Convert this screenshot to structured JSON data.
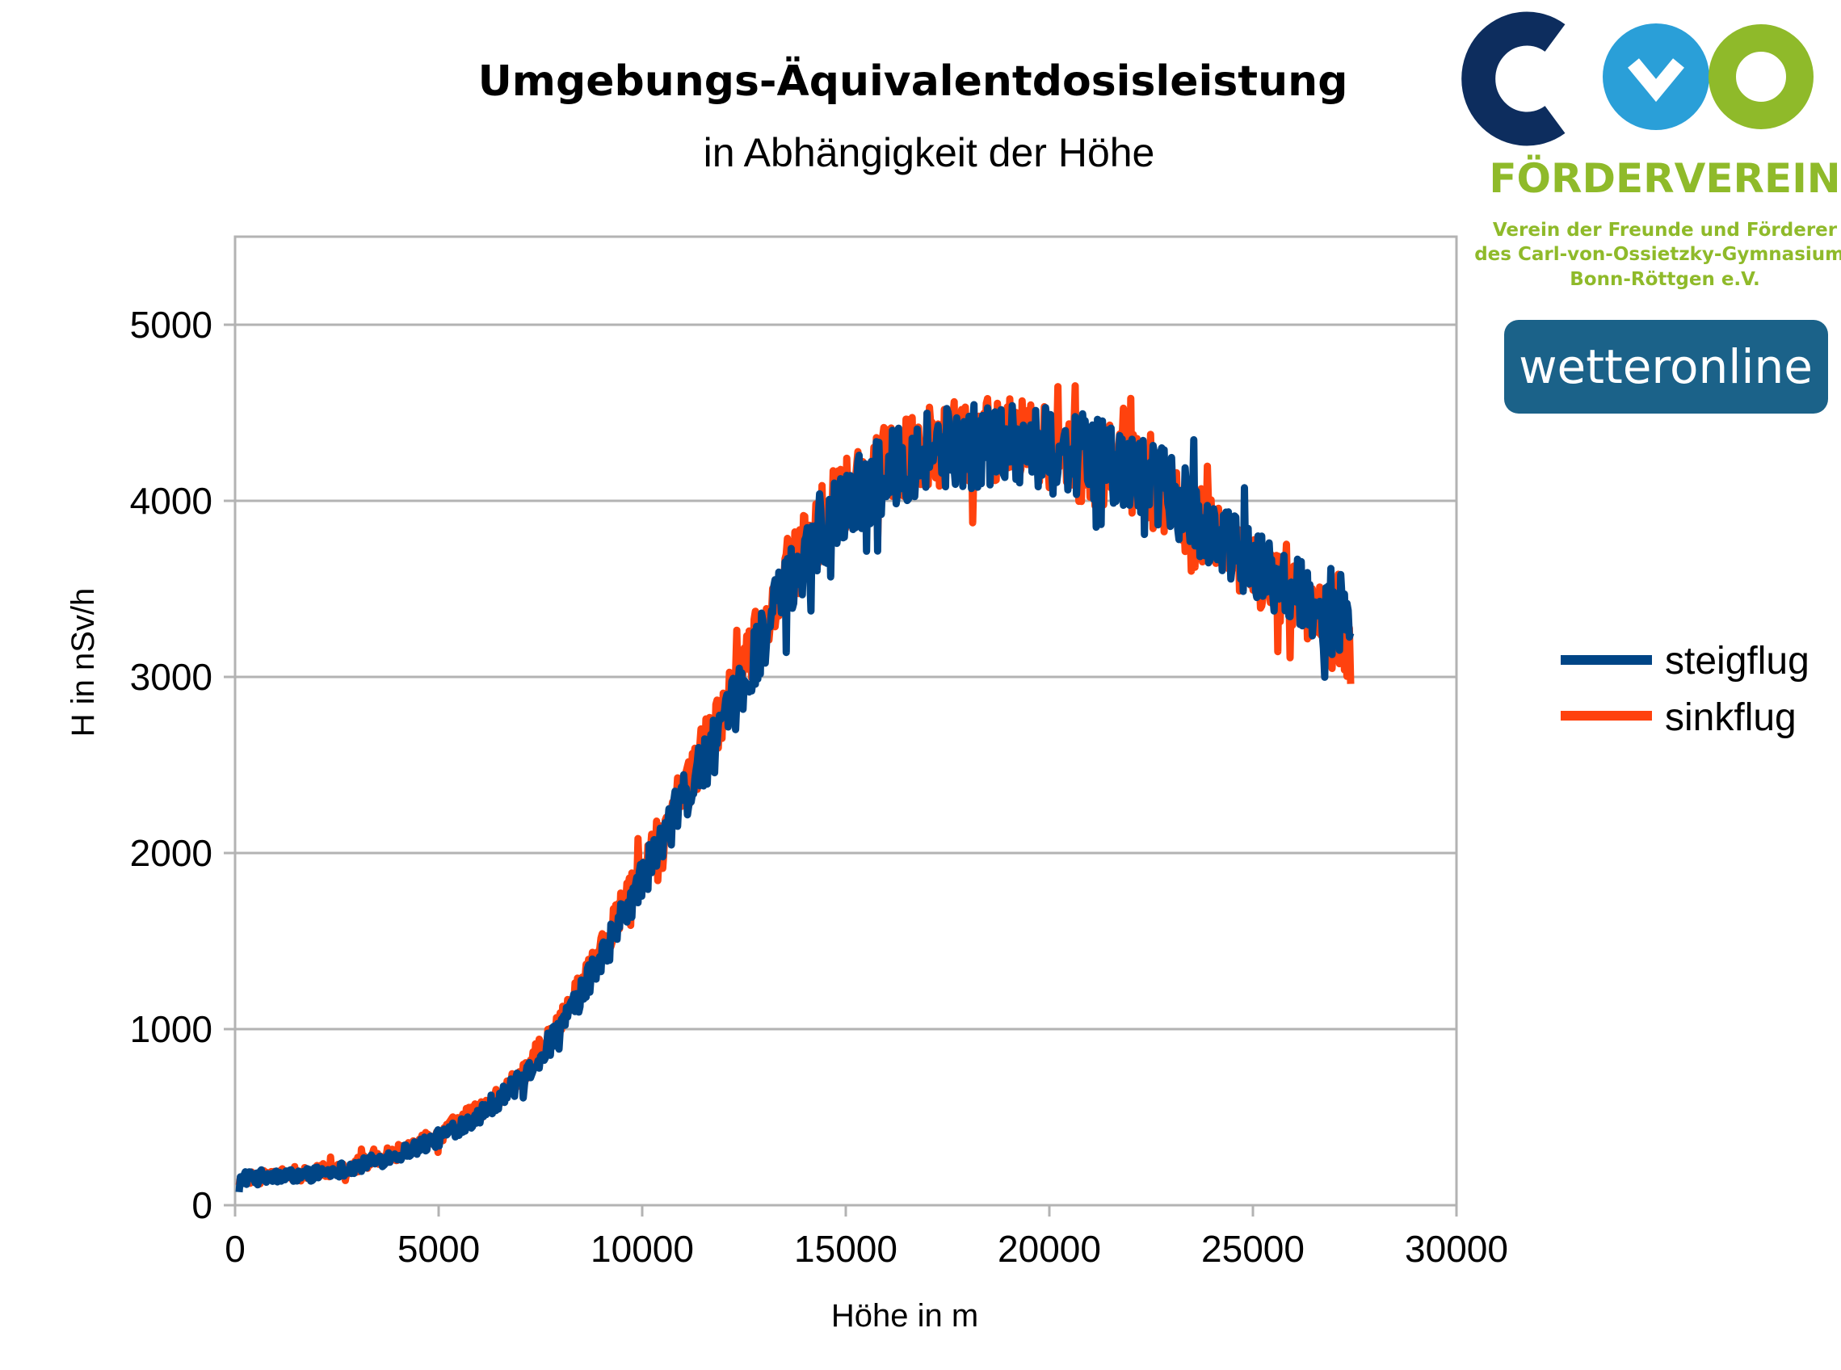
{
  "chart_data": {
    "type": "line",
    "title": "Umgebungs-Äquivalentdosisleistung",
    "subtitle": "in Abhängigkeit der Höhe",
    "xlabel": "Höhe in m",
    "ylabel": "H in nSv/h",
    "xlim": [
      0,
      30000
    ],
    "ylim": [
      0,
      5500
    ],
    "x_ticks": [
      0,
      5000,
      10000,
      15000,
      20000,
      25000,
      30000
    ],
    "y_ticks": [
      0,
      1000,
      2000,
      3000,
      4000,
      5000
    ],
    "x_tick_labels": [
      "0",
      "5000",
      "10000",
      "15000",
      "20000",
      "25000",
      "30000"
    ],
    "y_tick_labels": [
      "0",
      "1000",
      "2000",
      "3000",
      "4000",
      "5000"
    ],
    "grid": "horizontal",
    "legend_position": "right",
    "series": [
      {
        "name": "steigflug",
        "color": "#004586",
        "x": [
          100,
          1000,
          2000,
          3000,
          4000,
          5000,
          6000,
          7000,
          8000,
          9000,
          10000,
          11000,
          12000,
          13000,
          14000,
          15000,
          16000,
          17000,
          18000,
          19000,
          20000,
          21000,
          22000,
          23000,
          24000,
          25000,
          26000,
          27000,
          27400
        ],
        "y": [
          150,
          160,
          180,
          220,
          290,
          380,
          520,
          700,
          1000,
          1400,
          1850,
          2300,
          2700,
          3250,
          3700,
          4000,
          4150,
          4300,
          4300,
          4350,
          4300,
          4250,
          4150,
          4050,
          3800,
          3650,
          3500,
          3300,
          3300
        ]
      },
      {
        "name": "sinkflug",
        "color": "#ff420e",
        "x": [
          100,
          1000,
          2000,
          3000,
          4000,
          5000,
          6000,
          7000,
          8000,
          9000,
          10000,
          11000,
          12000,
          13000,
          14000,
          15000,
          16000,
          17000,
          18000,
          19000,
          20000,
          21000,
          22000,
          23000,
          24000,
          25000,
          26000,
          27000,
          27400
        ],
        "y": [
          140,
          170,
          190,
          230,
          300,
          400,
          540,
          720,
          1050,
          1450,
          1900,
          2350,
          2800,
          3300,
          3750,
          4050,
          4200,
          4300,
          4350,
          4350,
          4300,
          4200,
          4150,
          4000,
          3800,
          3600,
          3450,
          3250,
          3200
        ]
      }
    ]
  },
  "logos": {
    "cvo_letters": "CVO",
    "foerderverein": "FÖRDERVEREIN",
    "verein_line1": "Verein der Freunde und Förderer",
    "verein_line2": "des Carl-von-Ossietzky-Gymnasiums",
    "verein_line3": "Bonn-Röttgen e.V.",
    "wetteronline": "wetteronline",
    "colors": {
      "navy": "#0d2d5e",
      "blue": "#2a9fd8",
      "green": "#8fba2a",
      "wo_bg": "#1b6289"
    }
  }
}
